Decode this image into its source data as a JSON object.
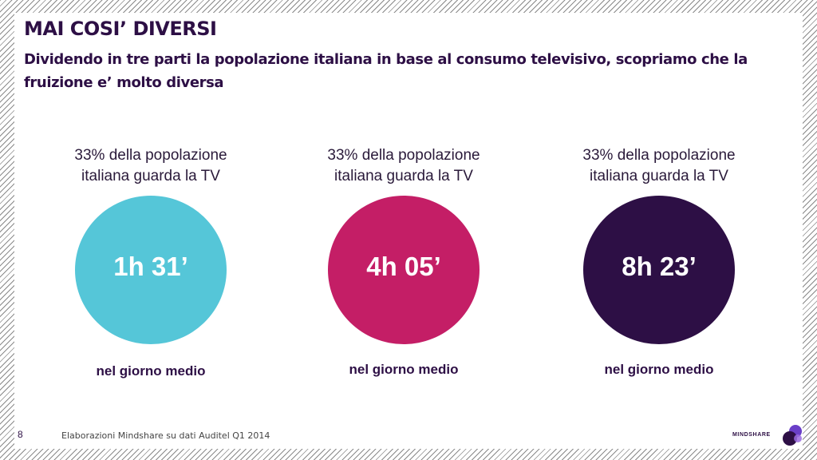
{
  "slide": {
    "title": "MAI COSI’ DIVERSI",
    "subtitle": "Dividendo in tre parti la popolazione italiana in base al consumo televisivo, scopriamo che la fruizione e’ molto diversa"
  },
  "groups": [
    {
      "caption_line1": "33% della popolazione",
      "caption_line2": "italiana guarda la TV",
      "value": "1h 31’",
      "label": "nel giorno medio",
      "color": "#55c6d8"
    },
    {
      "caption_line1": "33% della popolazione",
      "caption_line2": "italiana guarda la TV",
      "value": "4h 05’",
      "label": "nel giorno medio",
      "color": "#c41e66"
    },
    {
      "caption_line1": "33% della popolazione",
      "caption_line2": "italiana guarda la TV",
      "value": "8h 23’",
      "label": "nel giorno medio",
      "color": "#2d0f45"
    }
  ],
  "footer": {
    "page_number": "8",
    "source": "Elaborazioni Mindshare su dati Auditel Q1 2014",
    "logo_text": "MINDSHARE"
  },
  "colors": {
    "title": "#2d0f45",
    "logo_purple": "#6a3fc8",
    "logo_dark": "#2d0f45"
  }
}
